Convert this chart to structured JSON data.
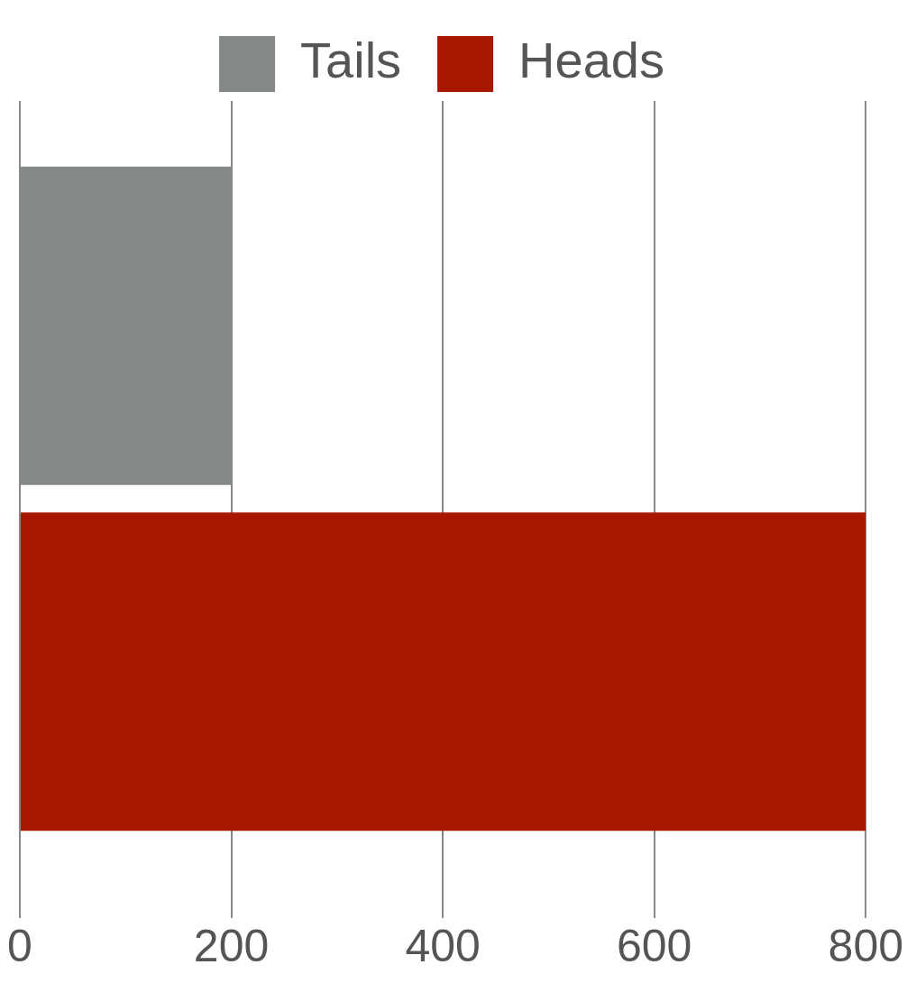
{
  "chart_data": {
    "type": "bar",
    "orientation": "horizontal",
    "categories": [
      null
    ],
    "series": [
      {
        "name": "Tails",
        "color": "#848886",
        "values": [
          200
        ]
      },
      {
        "name": "Heads",
        "color": "#a81800",
        "values": [
          800
        ]
      }
    ],
    "xlim": [
      0,
      800
    ],
    "xticks": [
      0,
      200,
      400,
      600,
      800
    ],
    "grid": "x",
    "legend": "top",
    "tick_labels": "x"
  }
}
